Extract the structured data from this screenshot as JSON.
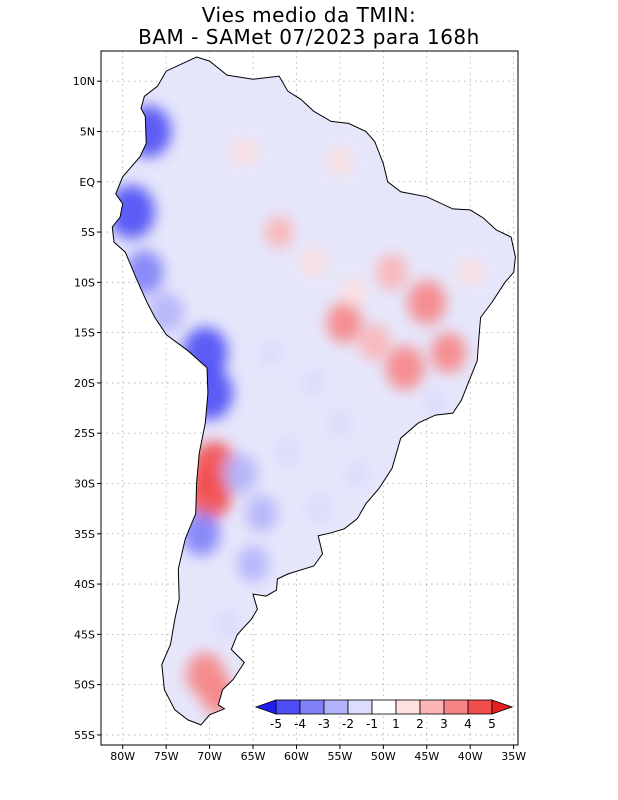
{
  "title": {
    "line1": "Vies medio da TMIN:",
    "line2": "BAM - SAMet 07/2023  para 168h"
  },
  "axes": {
    "lat_labels": [
      "10N",
      "5N",
      "EQ",
      "5S",
      "10S",
      "15S",
      "20S",
      "25S",
      "30S",
      "35S",
      "40S",
      "45S",
      "50S",
      "55S"
    ],
    "lat_values": [
      10,
      5,
      0,
      -5,
      -10,
      -15,
      -20,
      -25,
      -30,
      -35,
      -40,
      -45,
      -50,
      -55
    ],
    "lon_labels": [
      "80W",
      "75W",
      "70W",
      "65W",
      "60W",
      "55W",
      "50W",
      "45W",
      "40W",
      "35W"
    ],
    "lon_values": [
      -80,
      -75,
      -70,
      -65,
      -60,
      -55,
      -50,
      -45,
      -40,
      -35
    ],
    "lat_range": [
      -56,
      13
    ],
    "lon_range": [
      -82.5,
      -34.5
    ]
  },
  "colorbar": {
    "labels": [
      "-5",
      "-4",
      "-3",
      "-2",
      "-1",
      "1",
      "2",
      "3",
      "4",
      "5"
    ],
    "colors": [
      "#1f1ff0",
      "#4d4df5",
      "#8080f8",
      "#b3b3fb",
      "#dcdcfd",
      "#ffffff",
      "#fde0e0",
      "#fbb5b5",
      "#f78585",
      "#f24d4d",
      "#e81f1f"
    ]
  },
  "map": {
    "continent_outline": [
      [
        -77.5,
        8.5
      ],
      [
        -76,
        9.5
      ],
      [
        -75,
        11
      ],
      [
        -73,
        11.8
      ],
      [
        -71.5,
        12.4
      ],
      [
        -70,
        12
      ],
      [
        -68,
        10.6
      ],
      [
        -65,
        10.2
      ],
      [
        -62,
        10.5
      ],
      [
        -61,
        9
      ],
      [
        -59.5,
        8.2
      ],
      [
        -58,
        7
      ],
      [
        -56,
        6
      ],
      [
        -54,
        5.8
      ],
      [
        -52,
        5
      ],
      [
        -51,
        4
      ],
      [
        -50,
        1.8
      ],
      [
        -49.5,
        0
      ],
      [
        -48,
        -1
      ],
      [
        -45,
        -1.5
      ],
      [
        -42,
        -2.7
      ],
      [
        -40,
        -2.8
      ],
      [
        -38.5,
        -3.6
      ],
      [
        -37,
        -4.8
      ],
      [
        -35.3,
        -5.5
      ],
      [
        -34.8,
        -7.5
      ],
      [
        -35,
        -9
      ],
      [
        -36,
        -10
      ],
      [
        -37.5,
        -12
      ],
      [
        -38.8,
        -13.5
      ],
      [
        -39,
        -15.5
      ],
      [
        -39.2,
        -17.8
      ],
      [
        -40,
        -19.5
      ],
      [
        -41,
        -21.7
      ],
      [
        -42,
        -23
      ],
      [
        -44,
        -23.2
      ],
      [
        -46,
        -24
      ],
      [
        -48,
        -25.5
      ],
      [
        -48.5,
        -27
      ],
      [
        -49,
        -28.5
      ],
      [
        -50.5,
        -30.5
      ],
      [
        -52,
        -32
      ],
      [
        -53,
        -33.5
      ],
      [
        -54.5,
        -34.5
      ],
      [
        -56,
        -34.9
      ],
      [
        -57.5,
        -35.2
      ],
      [
        -57,
        -37
      ],
      [
        -58,
        -38.2
      ],
      [
        -61,
        -39
      ],
      [
        -62.2,
        -39.5
      ],
      [
        -62.3,
        -40.6
      ],
      [
        -63.5,
        -41.2
      ],
      [
        -65,
        -41
      ],
      [
        -64.5,
        -42.5
      ],
      [
        -65.2,
        -43.5
      ],
      [
        -66.8,
        -45
      ],
      [
        -67.5,
        -46.5
      ],
      [
        -66,
        -47.8
      ],
      [
        -67.3,
        -49.5
      ],
      [
        -68.5,
        -50.5
      ],
      [
        -69,
        -52
      ],
      [
        -68.3,
        -52.4
      ],
      [
        -70,
        -53
      ],
      [
        -71,
        -54
      ],
      [
        -72.5,
        -53.5
      ],
      [
        -74,
        -52.5
      ],
      [
        -75.2,
        -50.5
      ],
      [
        -75.5,
        -48
      ],
      [
        -74.5,
        -46
      ],
      [
        -74,
        -43.5
      ],
      [
        -73.5,
        -41.5
      ],
      [
        -73.6,
        -38.5
      ],
      [
        -72.8,
        -35.5
      ],
      [
        -71.6,
        -33
      ],
      [
        -71.5,
        -30
      ],
      [
        -71.2,
        -27
      ],
      [
        -70.5,
        -24
      ],
      [
        -70.2,
        -21
      ],
      [
        -70.3,
        -18.5
      ],
      [
        -72.5,
        -16.8
      ],
      [
        -75,
        -15.2
      ],
      [
        -76.3,
        -13.5
      ],
      [
        -77.2,
        -12
      ],
      [
        -78.5,
        -9.5
      ],
      [
        -79.7,
        -7
      ],
      [
        -81,
        -6
      ],
      [
        -81.2,
        -4.5
      ],
      [
        -80.3,
        -3.5
      ],
      [
        -80,
        -2.2
      ],
      [
        -80.8,
        -1.2
      ],
      [
        -80,
        0.5
      ],
      [
        -79,
        1.5
      ],
      [
        -78,
        2.5
      ],
      [
        -77.3,
        3.8
      ],
      [
        -77.4,
        6.5
      ],
      [
        -77.9,
        7.3
      ]
    ],
    "anomaly_cells": [
      {
        "lon": -77,
        "lat": 5,
        "v": -4.5
      },
      {
        "lon": -79,
        "lat": -3,
        "v": -4.8
      },
      {
        "lon": -77.5,
        "lat": -9,
        "v": -3.5
      },
      {
        "lon": -75,
        "lat": -13,
        "v": -3
      },
      {
        "lon": -70.5,
        "lat": -17,
        "v": -4.5
      },
      {
        "lon": -70,
        "lat": -21,
        "v": -4.8
      },
      {
        "lon": -69.5,
        "lat": -28.5,
        "v": 4.8
      },
      {
        "lon": -70,
        "lat": -31,
        "v": 4.5
      },
      {
        "lon": -71,
        "lat": -35,
        "v": -3.5
      },
      {
        "lon": -66.5,
        "lat": -29,
        "v": -3
      },
      {
        "lon": -64,
        "lat": -33,
        "v": -2.5
      },
      {
        "lon": -65,
        "lat": -38,
        "v": -2.5
      },
      {
        "lon": -68,
        "lat": -44,
        "v": -2
      },
      {
        "lon": -70.5,
        "lat": -49,
        "v": 3.5
      },
      {
        "lon": -69,
        "lat": -51,
        "v": 3
      },
      {
        "lon": -62,
        "lat": -5,
        "v": 2
      },
      {
        "lon": -66,
        "lat": 3,
        "v": 1.5
      },
      {
        "lon": -58,
        "lat": -8,
        "v": 1.5
      },
      {
        "lon": -53.5,
        "lat": -11,
        "v": 1.5
      },
      {
        "lon": -55,
        "lat": 2,
        "v": 1.5
      },
      {
        "lon": -49,
        "lat": -9,
        "v": 2.5
      },
      {
        "lon": -45,
        "lat": -12,
        "v": 3.5
      },
      {
        "lon": -42.5,
        "lat": -17,
        "v": 3
      },
      {
        "lon": -47.5,
        "lat": -18.5,
        "v": 3.5
      },
      {
        "lon": -51,
        "lat": -16,
        "v": 2.5
      },
      {
        "lon": -54.5,
        "lat": -14,
        "v": 3
      },
      {
        "lon": -40,
        "lat": -9,
        "v": 1.5
      },
      {
        "lon": -58,
        "lat": -20,
        "v": -1.5
      },
      {
        "lon": -55,
        "lat": -24,
        "v": -1.5
      },
      {
        "lon": -53,
        "lat": -29,
        "v": -1.5
      },
      {
        "lon": -57.5,
        "lat": -32.5,
        "v": -2
      },
      {
        "lon": -61,
        "lat": -27,
        "v": -2
      },
      {
        "lon": -63,
        "lat": -17,
        "v": -1.5
      },
      {
        "lon": -44,
        "lat": -22,
        "v": -1.5
      }
    ]
  }
}
